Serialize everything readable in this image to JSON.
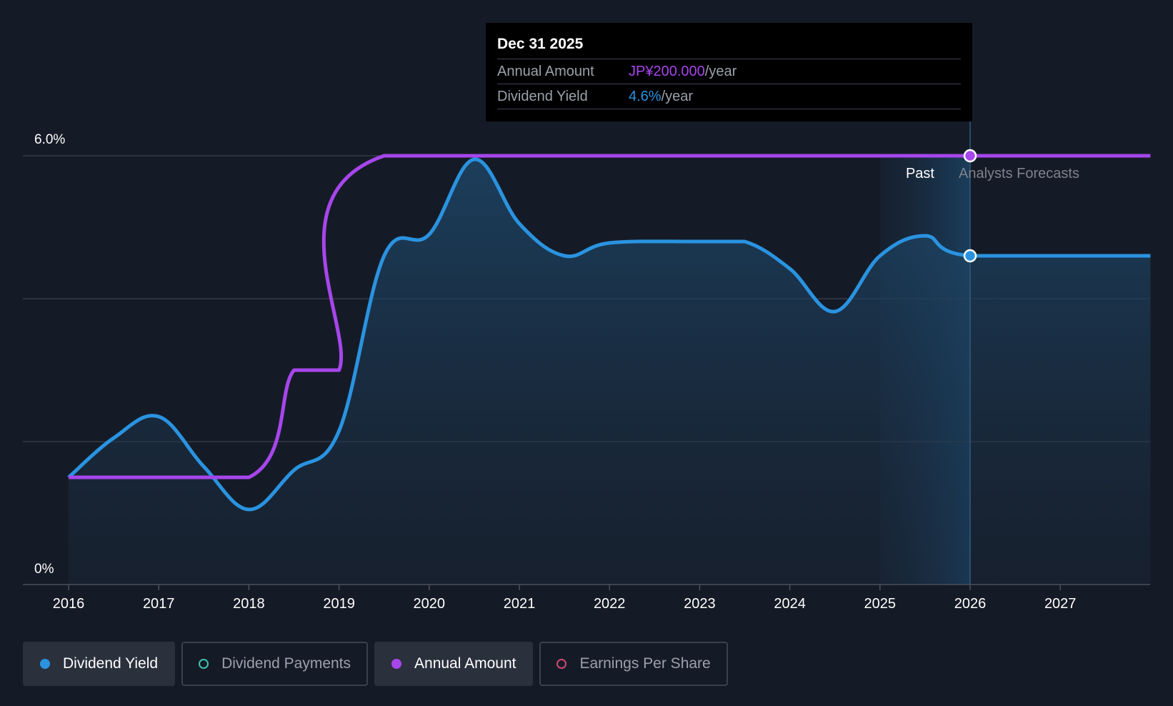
{
  "chart_data": {
    "type": "line",
    "title": "",
    "xlabel": "",
    "ylabel": "",
    "x_ticks": [
      "2016",
      "2017",
      "2018",
      "2019",
      "2020",
      "2021",
      "2022",
      "2023",
      "2024",
      "2025",
      "2026",
      "2027"
    ],
    "xlim": [
      2016,
      2028.0
    ],
    "ylim": [
      0,
      6.0
    ],
    "y_tick_labels": {
      "top": "6.0%",
      "bottom": "0%"
    },
    "series": [
      {
        "name": "Dividend Yield",
        "color": "#2a93e0",
        "unit": "%",
        "points": [
          [
            2016.0,
            1.5
          ],
          [
            2016.5,
            2.05
          ],
          [
            2017.0,
            2.35
          ],
          [
            2017.5,
            1.65
          ],
          [
            2018.0,
            1.05
          ],
          [
            2018.5,
            1.6
          ],
          [
            2019.0,
            2.15
          ],
          [
            2019.5,
            4.6
          ],
          [
            2020.0,
            4.9
          ],
          [
            2020.5,
            5.95
          ],
          [
            2021.0,
            5.05
          ],
          [
            2021.5,
            4.6
          ],
          [
            2022.0,
            4.78
          ],
          [
            2023.0,
            4.8
          ],
          [
            2023.5,
            4.8
          ],
          [
            2024.0,
            4.42
          ],
          [
            2024.5,
            3.82
          ],
          [
            2025.0,
            4.6
          ],
          [
            2025.5,
            4.88
          ],
          [
            2026.0,
            4.6
          ],
          [
            2028.0,
            4.6
          ]
        ]
      },
      {
        "name": "Annual Amount",
        "color": "#a646ec",
        "unit": "JP¥",
        "points": [
          [
            2016.0,
            1.5
          ],
          [
            2018.0,
            1.5
          ],
          [
            2018.5,
            3.0
          ],
          [
            2019.0,
            3.0
          ],
          [
            2019.5,
            6.0
          ],
          [
            2026.0,
            6.0
          ],
          [
            2028.0,
            6.0
          ]
        ]
      }
    ],
    "forecast_start": 2026.0,
    "past_shade_start": 2025.0,
    "annotations": {
      "past": "Past",
      "forecast": "Analysts Forecasts"
    }
  },
  "tooltip": {
    "date": "Dec 31 2025",
    "rows": [
      {
        "label": "Annual Amount",
        "value": "JP¥200.000",
        "unit": "/year",
        "color": "#a646ec"
      },
      {
        "label": "Dividend Yield",
        "value": "4.6%",
        "unit": "/year",
        "color": "#2a93e0"
      }
    ]
  },
  "legend": [
    {
      "label": "Dividend Yield",
      "color": "#2a93e0",
      "filled": true,
      "active": true
    },
    {
      "label": "Dividend Payments",
      "color": "#3fc1b0",
      "filled": false,
      "active": false
    },
    {
      "label": "Annual Amount",
      "color": "#a646ec",
      "filled": true,
      "active": true
    },
    {
      "label": "Earnings Per Share",
      "color": "#d04777",
      "filled": false,
      "active": false
    }
  ]
}
